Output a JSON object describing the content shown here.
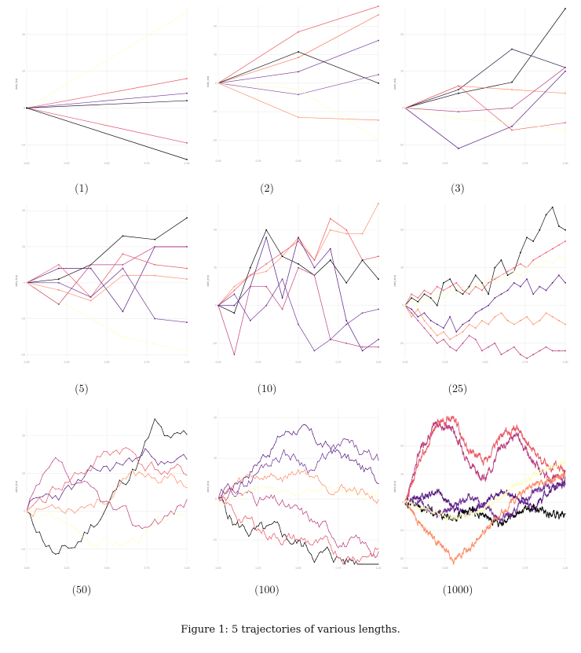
{
  "caption": "Figure 1: 5 trajectories of various lengths.",
  "colors": [
    "#000004",
    "#51127c",
    "#b73779",
    "#fc8961",
    "#fcfdbf"
  ],
  "chart_data": [
    {
      "type": "line",
      "label": "(1)",
      "n": 1,
      "x_ticks": [
        "0.00",
        "0.25",
        "0.50",
        "0.75",
        "1.00"
      ],
      "y_ticks": [
        "-10",
        "0",
        "10",
        "20"
      ],
      "ylabel": "data_traj",
      "ylim": [
        -14,
        27
      ],
      "series": [
        {
          "color": "#fcfdbf",
          "values": [
            0,
            26
          ]
        },
        {
          "color": "#e8525f",
          "values": [
            0,
            8
          ]
        },
        {
          "color": "#6a2c91",
          "values": [
            0,
            4
          ]
        },
        {
          "color": "#1a0b33",
          "values": [
            0,
            2
          ]
        },
        {
          "color": "#d9425e",
          "values": [
            0,
            -9.5
          ]
        },
        {
          "color": "#000004",
          "values": [
            0,
            -17
          ]
        }
      ]
    },
    {
      "type": "line",
      "label": "(2)",
      "n": 2,
      "x_ticks": [
        "0.00",
        "0.25",
        "0.50",
        "0.75",
        "1.00"
      ],
      "y_ticks": [
        "-20",
        "-10",
        "0",
        "10",
        "20"
      ],
      "ylabel": "data_traj",
      "ylim": [
        -26,
        27
      ],
      "series": [
        {
          "color": "#e8525f",
          "values": [
            0,
            18,
            27
          ]
        },
        {
          "color": "#fc6f5b",
          "values": [
            0,
            9,
            24
          ]
        },
        {
          "color": "#6a2c91",
          "values": [
            0,
            4,
            15
          ]
        },
        {
          "color": "#000004",
          "values": [
            0,
            11,
            0
          ]
        },
        {
          "color": "#7d3e9e",
          "values": [
            0,
            -4,
            3
          ]
        },
        {
          "color": "#fc8961",
          "values": [
            0,
            -12,
            -13
          ]
        },
        {
          "color": "#fcfdbf",
          "values": [
            0,
            -2,
            -20
          ]
        }
      ]
    },
    {
      "type": "line",
      "label": "(3)",
      "n": 3,
      "x_ticks": [
        "0.00",
        "0.25",
        "0.50",
        "0.75",
        "1.00"
      ],
      "y_ticks": [
        "-10",
        "0",
        "10",
        "20"
      ],
      "ylabel": "data_traj",
      "ylim": [
        -14,
        27
      ],
      "series": [
        {
          "color": "#000004",
          "values": [
            0,
            4,
            7,
            27
          ]
        },
        {
          "color": "#1a0b33",
          "values": [
            0,
            5,
            16,
            11
          ]
        },
        {
          "color": "#fc8961",
          "values": [
            0,
            6,
            5,
            4
          ]
        },
        {
          "color": "#e8525f",
          "values": [
            0,
            6,
            -6,
            -4
          ]
        },
        {
          "color": "#b73779",
          "values": [
            0,
            -1,
            0,
            11
          ]
        },
        {
          "color": "#51127c",
          "values": [
            0,
            -11,
            -5,
            10
          ]
        },
        {
          "color": "#fcfdbf",
          "values": [
            0,
            -3,
            -4,
            -6
          ]
        }
      ]
    },
    {
      "type": "line",
      "label": "(5)",
      "n": 5,
      "x_ticks": [
        "0.00",
        "0.25",
        "0.50",
        "0.75",
        "1.00"
      ],
      "y_ticks": [
        "-20",
        "-10",
        "0",
        "10",
        "20"
      ],
      "ylabel": "data_traj",
      "ylim": [
        -21,
        22
      ],
      "series": [
        {
          "color": "#000004",
          "values": [
            0,
            1,
            5,
            13,
            12,
            18
          ]
        },
        {
          "color": "#51127c",
          "values": [
            0,
            4,
            4,
            -8,
            10,
            10
          ]
        },
        {
          "color": "#b73779",
          "values": [
            0,
            -6,
            5,
            5,
            10,
            10
          ]
        },
        {
          "color": "#e8525f",
          "values": [
            0,
            5,
            -4,
            8,
            5,
            4
          ]
        },
        {
          "color": "#fc8961",
          "values": [
            0,
            -2,
            -5,
            2,
            2,
            1
          ]
        },
        {
          "color": "#6a2c91",
          "values": [
            0,
            0,
            -4,
            4,
            -10,
            -11
          ]
        },
        {
          "color": "#fcfdbf",
          "values": [
            0,
            -5,
            -10,
            -15,
            -17,
            -19
          ]
        }
      ]
    },
    {
      "type": "line",
      "label": "(10)",
      "n": 10,
      "x_ticks": [
        "0.00",
        "0.25",
        "0.50",
        "0.75",
        "1.00"
      ],
      "y_ticks": [
        "-20",
        "-10",
        "0",
        "10",
        "20"
      ],
      "ylabel": "data_traj",
      "ylim": [
        -14,
        27
      ],
      "series": [
        {
          "color": "#fc8961",
          "values": [
            0,
            5,
            8,
            9,
            13,
            18,
            12,
            20,
            19,
            19,
            27
          ]
        },
        {
          "color": "#e8525f",
          "values": [
            0,
            4,
            8,
            11,
            14,
            17,
            12,
            23,
            20,
            12,
            13
          ]
        },
        {
          "color": "#000004",
          "values": [
            0,
            -2,
            10,
            20,
            13,
            11,
            8,
            12,
            6,
            12,
            7
          ]
        },
        {
          "color": "#51127c",
          "values": [
            0,
            0,
            5,
            18,
            2,
            18,
            10,
            15,
            -4,
            -12,
            -9
          ]
        },
        {
          "color": "#b73779",
          "values": [
            0,
            -13,
            5,
            5,
            -1,
            10,
            8,
            -9,
            -10,
            -11,
            -11
          ]
        },
        {
          "color": "#6a2c91",
          "values": [
            0,
            3,
            -4,
            0,
            7,
            -5,
            -12,
            -9,
            -5,
            -2,
            -1
          ]
        }
      ]
    },
    {
      "type": "line",
      "label": "(25)",
      "n": 25,
      "x_ticks": [
        "0.00",
        "0.25",
        "0.50",
        "0.75",
        "1.00"
      ],
      "y_ticks": [
        "-10",
        "0",
        "10",
        "20"
      ],
      "ylabel": "data_traj",
      "ylim": [
        -14,
        27
      ],
      "series": [
        {
          "color": "#000004",
          "values": [
            0,
            2,
            1,
            3,
            2,
            0,
            6,
            7,
            4,
            3,
            5,
            8,
            6,
            3,
            10,
            12,
            8,
            9,
            14,
            18,
            17,
            20,
            24,
            26,
            21,
            20
          ]
        },
        {
          "color": "#51127c",
          "values": [
            0,
            -1,
            -3,
            -2,
            -4,
            -5,
            -6,
            -3,
            -7,
            -5,
            -4,
            -2,
            -1,
            0,
            2,
            3,
            4,
            6,
            5,
            7,
            3,
            5,
            4,
            6,
            8,
            6
          ]
        },
        {
          "color": "#b73779",
          "values": [
            0,
            -2,
            -4,
            -6,
            -8,
            -10,
            -9,
            -11,
            -12,
            -10,
            -8,
            -9,
            -12,
            -11,
            -10,
            -13,
            -12,
            -11,
            -13,
            -14,
            -13,
            -12,
            -11,
            -12,
            -12,
            -12
          ]
        },
        {
          "color": "#e8525f",
          "values": [
            0,
            3,
            2,
            4,
            3,
            5,
            4,
            5,
            6,
            4,
            3,
            5,
            4,
            6,
            7,
            8,
            9,
            10,
            11,
            10,
            12,
            13,
            14,
            15,
            16,
            17
          ]
        },
        {
          "color": "#fc8961",
          "values": [
            0,
            -3,
            -1,
            -4,
            -6,
            -8,
            -7,
            -9,
            -8,
            -7,
            -5,
            -6,
            -4,
            -5,
            -3,
            -2,
            -4,
            -5,
            -4,
            -3,
            -5,
            -4,
            -2,
            -3,
            -4,
            -5
          ]
        },
        {
          "color": "#fcfdbf",
          "values": [
            0,
            1,
            0,
            2,
            1,
            3,
            2,
            4,
            3,
            5,
            4,
            6,
            5,
            7,
            6,
            8,
            7,
            9,
            8,
            10,
            11,
            10,
            12,
            11,
            13,
            12
          ]
        }
      ]
    },
    {
      "type": "line",
      "label": "(50)",
      "n": 50,
      "x_ticks": [
        "0.00",
        "0.25",
        "0.50",
        "0.75",
        "1.00"
      ],
      "y_ticks": [
        "-10",
        "0",
        "10",
        "20"
      ],
      "ylabel": "data_traj",
      "ylim": [
        -14,
        27
      ],
      "series": [
        {
          "color": "#000004",
          "seed": 11,
          "start": 0,
          "end": 18,
          "amp": 2.4,
          "bias": [
            0,
            -6,
            -12,
            -10,
            -4,
            2,
            8,
            14,
            22,
            16,
            18
          ]
        },
        {
          "color": "#51127c",
          "seed": 23,
          "start": 0,
          "end": 13,
          "amp": 2.0,
          "bias": [
            0,
            2,
            4,
            6,
            8,
            10,
            12,
            14,
            16,
            12,
            13
          ]
        },
        {
          "color": "#b73779",
          "seed": 37,
          "start": 0,
          "end": 3,
          "amp": 2.2,
          "bias": [
            0,
            6,
            10,
            4,
            2,
            0,
            -3,
            -6,
            -2,
            0,
            3
          ]
        },
        {
          "color": "#e8525f",
          "seed": 41,
          "start": 0,
          "end": 9,
          "amp": 2.2,
          "bias": [
            0,
            3,
            7,
            10,
            12,
            15,
            17,
            14,
            12,
            10,
            9
          ]
        },
        {
          "color": "#fc8961",
          "seed": 53,
          "start": 0,
          "end": 8,
          "amp": 2.0,
          "bias": [
            0,
            1,
            2,
            3,
            4,
            5,
            7,
            9,
            10,
            9,
            8
          ]
        },
        {
          "color": "#fcfdbf",
          "seed": 67,
          "start": 0,
          "end": -2,
          "amp": 1.6,
          "bias": [
            0,
            -1,
            -2,
            -4,
            -6,
            -7,
            -8,
            -6,
            -4,
            -3,
            -2
          ]
        }
      ]
    },
    {
      "type": "line",
      "label": "(100)",
      "n": 100,
      "x_ticks": [
        "0.00",
        "0.25",
        "0.50",
        "0.75",
        "1.00"
      ],
      "y_ticks": [
        "-10",
        "0",
        "10",
        "20"
      ],
      "ylabel": "data_traj",
      "ylim": [
        -16,
        22
      ],
      "series": [
        {
          "color": "#000004",
          "seed": 5,
          "start": 0,
          "end": -15,
          "amp": 1.6,
          "bias": [
            0,
            -6,
            -8,
            -9,
            -10,
            -11,
            -13,
            -14,
            -15,
            -15,
            -15
          ]
        },
        {
          "color": "#51127c",
          "seed": 17,
          "start": 0,
          "end": 5,
          "amp": 1.4,
          "bias": [
            0,
            4,
            8,
            12,
            16,
            18,
            14,
            12,
            10,
            7,
            5
          ]
        },
        {
          "color": "#6a2c91",
          "seed": 29,
          "start": 0,
          "end": 9,
          "amp": 1.4,
          "bias": [
            0,
            2,
            5,
            9,
            12,
            10,
            8,
            11,
            13,
            10,
            9
          ]
        },
        {
          "color": "#b73779",
          "seed": 31,
          "start": 0,
          "end": -13,
          "amp": 1.4,
          "bias": [
            0,
            2,
            1,
            0,
            -2,
            -4,
            -6,
            -8,
            -10,
            -12,
            -13
          ]
        },
        {
          "color": "#e8525f",
          "seed": 43,
          "start": 0,
          "end": -12,
          "amp": 1.4,
          "bias": [
            0,
            -4,
            -6,
            -8,
            -9,
            -10,
            -11,
            -13,
            -14,
            -13,
            -12
          ]
        },
        {
          "color": "#fc8961",
          "seed": 59,
          "start": 0,
          "end": 0,
          "amp": 1.2,
          "bias": [
            0,
            3,
            5,
            6,
            5,
            7,
            6,
            4,
            3,
            2,
            0
          ]
        },
        {
          "color": "#fcfdbf",
          "seed": 71,
          "start": 0,
          "end": 1,
          "amp": 0.9,
          "bias": [
            0,
            1,
            2,
            3,
            2,
            1,
            2,
            3,
            2,
            1,
            1
          ]
        }
      ]
    },
    {
      "type": "line",
      "label": "(1000)",
      "n": 1000,
      "x_ticks": [
        "0.00",
        "0.25",
        "0.50",
        "0.75",
        "1.00"
      ],
      "y_ticks": [
        "-20",
        "-10",
        "0",
        "10",
        "20"
      ],
      "ylabel": "data_traj",
      "ylim": [
        -22,
        33
      ],
      "series": [
        {
          "color": "#b73779",
          "seed": 7,
          "start": 0,
          "end": 10,
          "amp": 0.9,
          "bias": [
            0,
            20,
            28,
            26,
            14,
            8,
            20,
            24,
            14,
            8,
            10
          ]
        },
        {
          "color": "#e8525f",
          "seed": 13,
          "start": 0,
          "end": 12,
          "amp": 0.9,
          "bias": [
            0,
            16,
            28,
            30,
            18,
            14,
            24,
            26,
            18,
            12,
            12
          ]
        },
        {
          "color": "#51127c",
          "seed": 19,
          "start": 0,
          "end": 8,
          "amp": 0.8,
          "bias": [
            0,
            2,
            4,
            -2,
            -4,
            0,
            4,
            2,
            -2,
            4,
            8
          ]
        },
        {
          "color": "#000004",
          "seed": 27,
          "start": 0,
          "end": -4,
          "amp": 0.8,
          "bias": [
            0,
            -2,
            -4,
            -6,
            -3,
            -5,
            -8,
            -4,
            -2,
            -4,
            -4
          ]
        },
        {
          "color": "#6a2c91",
          "seed": 33,
          "start": 0,
          "end": 6,
          "amp": 0.8,
          "bias": [
            0,
            0,
            -4,
            -2,
            2,
            -2,
            -6,
            -2,
            4,
            6,
            6
          ]
        },
        {
          "color": "#fc8961",
          "seed": 47,
          "start": 0,
          "end": 10,
          "amp": 0.8,
          "bias": [
            0,
            -8,
            -14,
            -20,
            -16,
            -10,
            -4,
            2,
            6,
            8,
            10
          ]
        },
        {
          "color": "#fcfdbf",
          "seed": 61,
          "start": 0,
          "end": 14,
          "amp": 0.7,
          "bias": [
            0,
            -2,
            -4,
            -6,
            -4,
            -2,
            2,
            6,
            10,
            12,
            14
          ]
        }
      ]
    }
  ]
}
